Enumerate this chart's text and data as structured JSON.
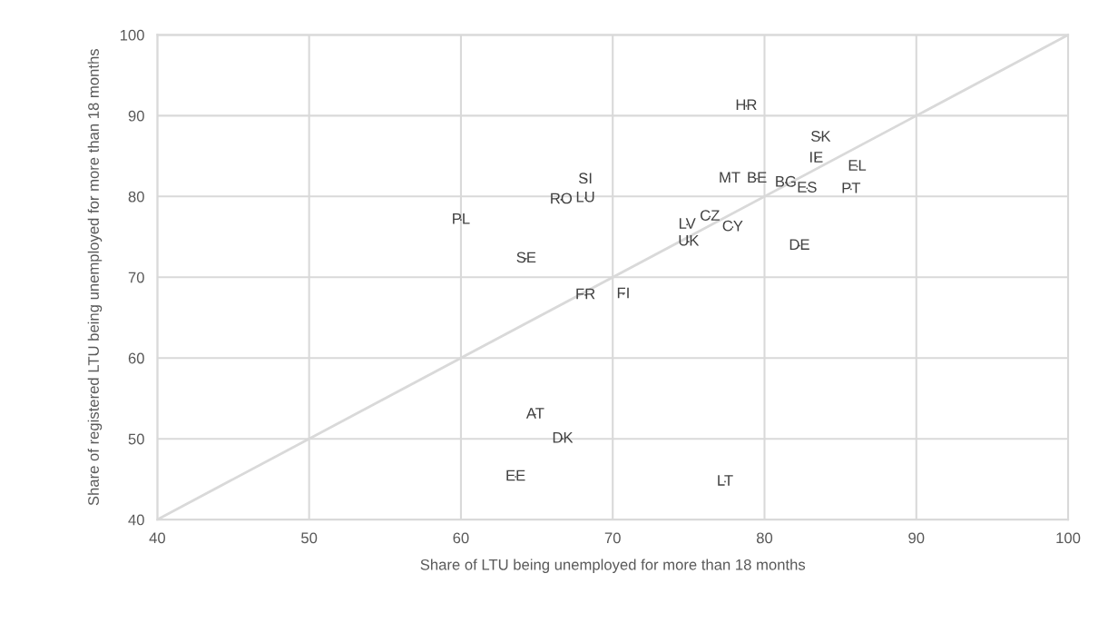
{
  "chart_data": {
    "type": "scatter",
    "xlabel": "Share of LTU being unemployed for more than 18 months",
    "ylabel": "Share of registered LTU being unemployed for more than 18 months",
    "xlim": [
      40,
      100
    ],
    "xticks": [
      40,
      50,
      60,
      70,
      80,
      90,
      100
    ],
    "ylim": [
      40,
      100
    ],
    "yticks": [
      40,
      50,
      60,
      70,
      80,
      90,
      100
    ],
    "grid": true,
    "marker": "none",
    "series": [
      {
        "color": "#404040",
        "x": [
          78.8,
          83.7,
          83.4,
          86.1,
          85.7,
          82.8,
          81.4,
          79.5,
          77.7,
          68.2,
          68.2,
          66.6,
          60.0,
          64.3,
          76.4,
          77.9,
          74.9,
          75.0,
          82.3,
          68.2,
          70.7,
          64.9,
          66.7,
          63.6,
          77.4
        ],
        "values": [
          91.2,
          87.3,
          84.7,
          83.7,
          80.9,
          81.0,
          81.7,
          82.2,
          82.2,
          82.1,
          79.8,
          79.6,
          77.1,
          72.3,
          77.5,
          76.2,
          76.5,
          74.4,
          73.9,
          67.8,
          67.9,
          53.0,
          50.0,
          45.3,
          44.7
        ],
        "value_labels": [
          "HR",
          "SK",
          "IE",
          "EL",
          "PT",
          "ES",
          "BG",
          "BE",
          "MT",
          "SI",
          "LU",
          "RO",
          "PL",
          "SE",
          "CZ",
          "CY",
          "LV",
          "UK",
          "DE",
          "FR",
          "FI",
          "AT",
          "DK",
          "EE",
          "LT"
        ]
      },
      {
        "type": "line",
        "color": "#d9d9d9",
        "x": [
          40,
          100
        ],
        "values": [
          40,
          100
        ]
      }
    ]
  }
}
